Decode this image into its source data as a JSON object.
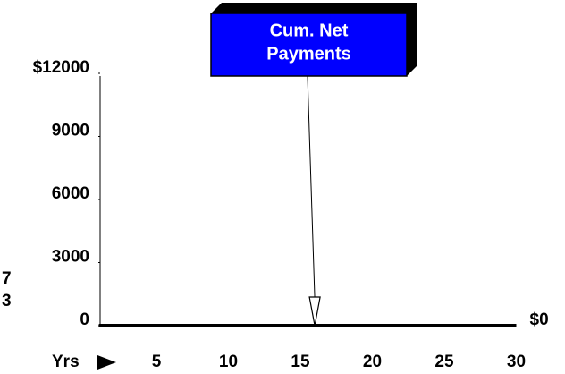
{
  "chart_data": {
    "type": "line",
    "xlabel": "Yrs",
    "x": [
      1,
      30
    ],
    "series": [
      {
        "values": [
          0,
          0
        ],
        "color": "#000000",
        "value_labels": [
          null,
          "$0"
        ]
      }
    ],
    "xlim": [
      1,
      30
    ],
    "xticks": [
      5,
      10,
      15,
      20,
      25,
      30
    ],
    "ylim": [
      0,
      12000
    ],
    "yticks": [
      0,
      3000,
      6000,
      9000,
      {
        "value": 12000,
        "label": "$12000"
      }
    ],
    "annotation": {
      "text": [
        "Cum. Net",
        "Payments"
      ],
      "x": 16,
      "y": 0,
      "color": "#0000ff"
    },
    "side_text": [
      "7",
      "3"
    ]
  }
}
